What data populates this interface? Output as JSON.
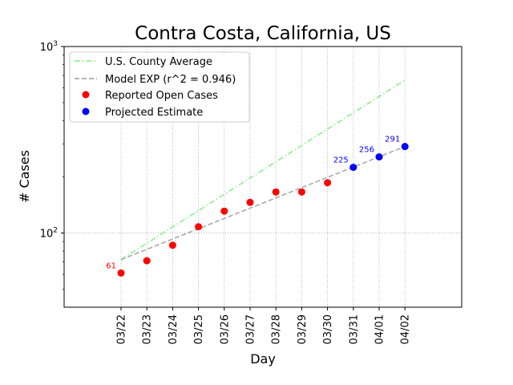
{
  "chart_data": {
    "type": "scatter",
    "title": "Contra Costa, California, US",
    "xlabel": "Day",
    "ylabel": "# Cases",
    "yscale": "log",
    "ylim": [
      40,
      1000
    ],
    "y_ticks": [
      {
        "value": 100,
        "base": "10",
        "exp": "2"
      },
      {
        "value": 1000,
        "base": "10",
        "exp": "3"
      }
    ],
    "categories": [
      "03/22",
      "03/23",
      "03/24",
      "03/25",
      "03/26",
      "03/27",
      "03/28",
      "03/29",
      "03/30",
      "03/31",
      "04/01",
      "04/02"
    ],
    "grid": true,
    "legend_position": "top-left",
    "series": [
      {
        "name": "U.S. County Average",
        "style": "dash-dot",
        "color": "#90ee90",
        "x": [
          "03/22",
          "04/02"
        ],
        "values": [
          72,
          660
        ]
      },
      {
        "name": "Model EXP (r^2 = 0.946)",
        "style": "dashed",
        "color": "#a9a9a9",
        "x": [
          "03/22",
          "04/02"
        ],
        "values": [
          72,
          291
        ]
      },
      {
        "name": "Reported Open Cases",
        "style": "marker",
        "color": "#ff0000",
        "x": [
          "03/22",
          "03/23",
          "03/24",
          "03/25",
          "03/26",
          "03/27",
          "03/28",
          "03/29",
          "03/30"
        ],
        "values": [
          61,
          71,
          86,
          108,
          131,
          146,
          166,
          166,
          186
        ]
      },
      {
        "name": "Projected Estimate",
        "style": "marker",
        "color": "#0000ff",
        "x": [
          "03/31",
          "04/01",
          "04/02"
        ],
        "values": [
          225,
          256,
          291
        ]
      }
    ],
    "annotations": [
      {
        "text": "61",
        "x": "03/22",
        "y": 61,
        "color": "#ff0000"
      },
      {
        "text": "225",
        "x": "03/31",
        "y": 225,
        "color": "#0000ff"
      },
      {
        "text": "256",
        "x": "04/01",
        "y": 256,
        "color": "#0000ff"
      },
      {
        "text": "291",
        "x": "04/02",
        "y": 291,
        "color": "#0000ff"
      }
    ]
  }
}
